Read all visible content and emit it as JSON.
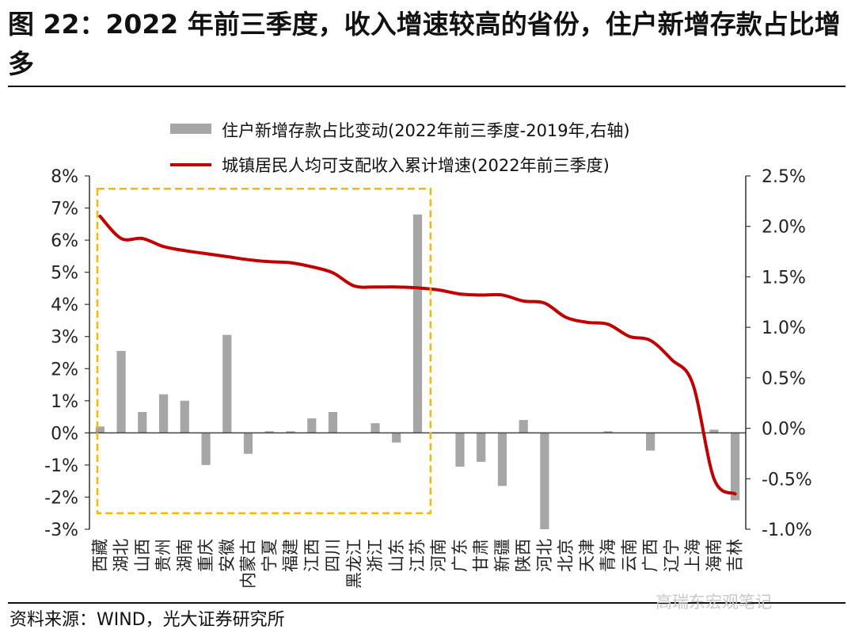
{
  "figure_title": "图 22：2022 年前三季度，收入增速较高的省份，住户新增存款占比增多",
  "source": "资料来源：WIND，光大证券研究所",
  "watermark": "高瑞东宏观笔记",
  "colors": {
    "bar": "#a6a6a6",
    "line": "#c00000",
    "box": "#f5b800",
    "axis": "#333333"
  },
  "chart_data": {
    "type": "bar+line",
    "categories": [
      "西藏",
      "湖北",
      "山西",
      "贵州",
      "湖南",
      "重庆",
      "安徽",
      "内蒙古",
      "宁夏",
      "福建",
      "江西",
      "四川",
      "黑龙江",
      "浙江",
      "山东",
      "江苏",
      "河南",
      "广东",
      "甘肃",
      "新疆",
      "陕西",
      "河北",
      "北京",
      "天津",
      "青海",
      "云南",
      "广西",
      "辽宁",
      "上海",
      "海南",
      "吉林"
    ],
    "series": [
      {
        "name": "住户新增存款占比变动(2022年前三季度-2019年,右轴)",
        "type": "bar",
        "axis": "left",
        "values": [
          0.2,
          2.55,
          0.65,
          1.2,
          1.0,
          -1.0,
          3.05,
          -0.65,
          0.05,
          0.05,
          0.45,
          0.65,
          0.0,
          0.3,
          -0.3,
          6.8,
          0.0,
          -1.05,
          -0.9,
          -1.65,
          0.4,
          -3.0,
          0.0,
          0.0,
          0.05,
          0.0,
          -0.55,
          0.0,
          0.0,
          0.1,
          -2.1
        ]
      },
      {
        "name": "城镇居民人均可支配收入累计增速(2022年前三季度)",
        "type": "line",
        "axis": "right",
        "values": [
          2.1,
          1.88,
          1.88,
          1.8,
          1.76,
          1.73,
          1.7,
          1.67,
          1.65,
          1.64,
          1.6,
          1.54,
          1.41,
          1.4,
          1.4,
          1.39,
          1.37,
          1.33,
          1.32,
          1.32,
          1.26,
          1.24,
          1.1,
          1.05,
          1.03,
          0.91,
          0.87,
          0.68,
          0.44,
          -0.5,
          -0.65
        ]
      }
    ],
    "left_axis": {
      "min": -3,
      "max": 8,
      "step": 1,
      "ticks": [
        "8%",
        "7%",
        "6%",
        "5%",
        "4%",
        "3%",
        "2%",
        "1%",
        "0%",
        "-1%",
        "-2%",
        "-3%"
      ]
    },
    "right_axis": {
      "min": -1.0,
      "max": 2.5,
      "step": 0.5,
      "ticks": [
        "2.5%",
        "2.0%",
        "1.5%",
        "1.0%",
        "0.5%",
        "0.0%",
        "-0.5%",
        "-1.0%"
      ]
    },
    "legend": {
      "placement": "top-center",
      "bar_label": "住户新增存款占比变动(2022年前三季度-2019年,右轴)",
      "line_label": "城镇居民人均可支配收入累计增速(2022年前三季度)"
    },
    "highlight_box": {
      "from_category": "西藏",
      "to_category": "江苏",
      "style": "dashed"
    }
  }
}
